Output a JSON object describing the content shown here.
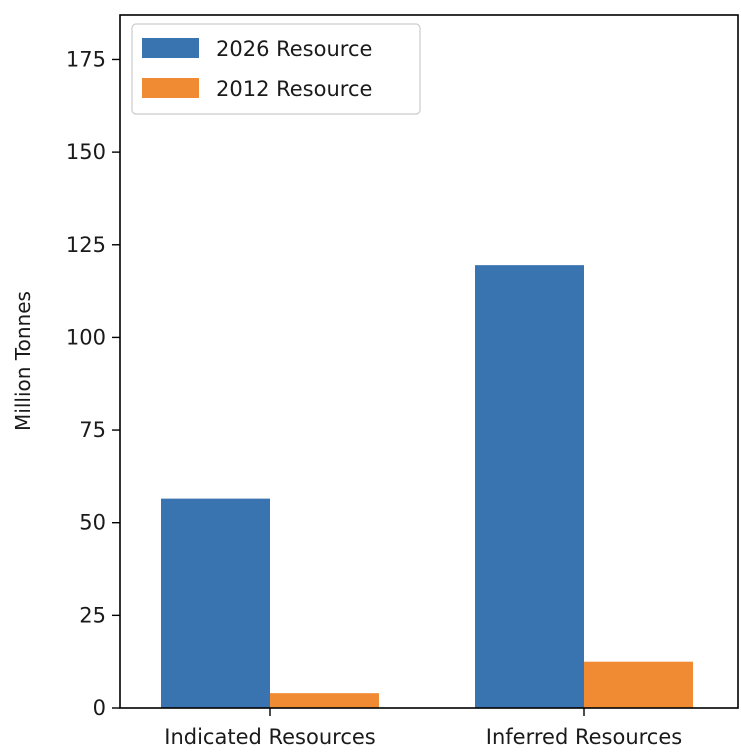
{
  "chart_data": {
    "type": "bar",
    "title": "",
    "xlabel": "",
    "ylabel": "Million Tonnes",
    "categories": [
      "Indicated Resources",
      "Inferred Resources"
    ],
    "series": [
      {
        "name": "2026 Resource",
        "color": "#3a74b0",
        "values": [
          56.5,
          119.5
        ]
      },
      {
        "name": "2012 Resource",
        "color": "#f08a33",
        "values": [
          4,
          12.5
        ]
      }
    ],
    "ylim": [
      0,
      187
    ],
    "yticks": [
      0,
      25,
      50,
      75,
      100,
      125,
      150,
      175
    ],
    "grid": false,
    "legend_position": "top-left"
  }
}
